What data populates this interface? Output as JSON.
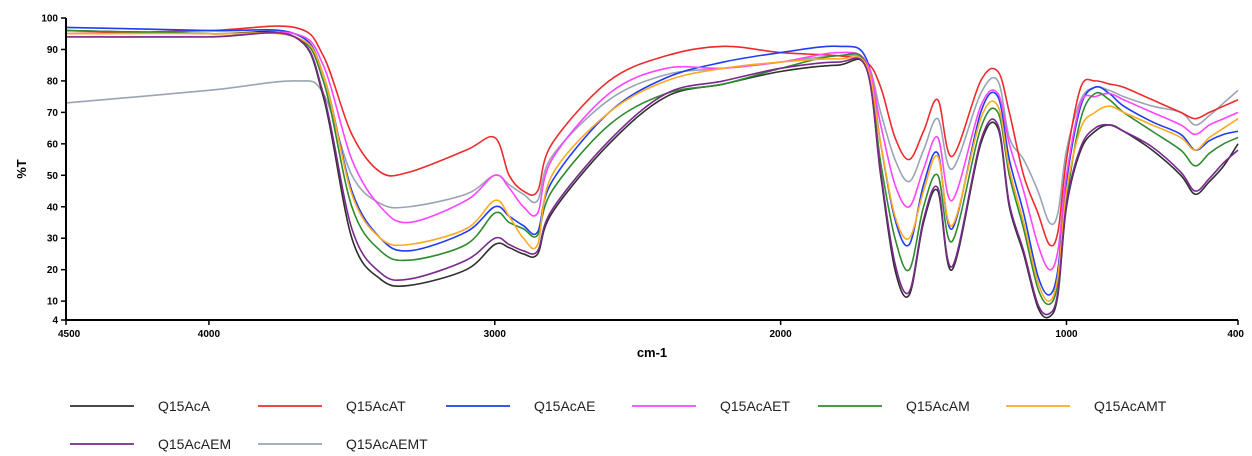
{
  "chart_data": {
    "type": "line",
    "xlabel": "cm-1",
    "ylabel": "%T",
    "xlim": [
      4500,
      400
    ],
    "ylim": [
      4,
      100
    ],
    "x_reversed": true,
    "grid": false,
    "legend_position": "bottom",
    "x_ticks": [
      4500,
      4000,
      3000,
      2000,
      1000,
      400
    ],
    "x_tick_labels": [
      "4500",
      "4000",
      "3000",
      "2000",
      "1000",
      "400"
    ],
    "y_ticks": [
      4,
      10,
      20,
      30,
      40,
      50,
      60,
      70,
      80,
      90,
      100
    ],
    "y_tick_labels": [
      "4",
      "10",
      "20",
      "30",
      "40",
      "50",
      "60",
      "70",
      "80",
      "90",
      "100"
    ],
    "x": [
      4500,
      4000,
      3700,
      3600,
      3500,
      3400,
      3300,
      3100,
      3000,
      2950,
      2900,
      2850,
      2800,
      2600,
      2400,
      2200,
      2000,
      1800,
      1700,
      1650,
      1600,
      1550,
      1500,
      1450,
      1400,
      1300,
      1240,
      1200,
      1150,
      1100,
      1060,
      1030,
      1000,
      950,
      900,
      850,
      800,
      700,
      600,
      550,
      500,
      450,
      400
    ],
    "series": [
      {
        "name": "Q15AcA",
        "color": "#2f2f2f",
        "values": [
          96,
          95,
          94,
          75,
          30,
          17,
          15,
          20,
          28,
          27,
          25,
          25,
          38,
          60,
          75,
          79,
          83,
          85,
          84,
          50,
          20,
          12,
          35,
          45,
          20,
          60,
          65,
          40,
          25,
          8,
          5,
          12,
          40,
          58,
          64,
          66,
          64,
          58,
          50,
          44,
          48,
          53,
          60
        ]
      },
      {
        "name": "Q15AcAT",
        "color": "#ee2b2b",
        "values": [
          95,
          96,
          97,
          88,
          63,
          51,
          51,
          58,
          62,
          50,
          45,
          45,
          60,
          80,
          88,
          91,
          89,
          88,
          86,
          78,
          62,
          55,
          64,
          74,
          56,
          80,
          83,
          70,
          50,
          38,
          28,
          32,
          55,
          78,
          80,
          79,
          78,
          74,
          70,
          68,
          70,
          72,
          74
        ]
      },
      {
        "name": "Q15AcAE",
        "color": "#1f3df2",
        "values": [
          97,
          96,
          95,
          82,
          45,
          30,
          26,
          32,
          40,
          37,
          34,
          32,
          48,
          70,
          81,
          86,
          89,
          91,
          87,
          60,
          36,
          28,
          47,
          57,
          33,
          70,
          75,
          55,
          38,
          18,
          12,
          20,
          48,
          72,
          78,
          76,
          72,
          67,
          63,
          58,
          61,
          63,
          64
        ]
      },
      {
        "name": "Q15AcAET",
        "color": "#ff44ff",
        "values": [
          94,
          94,
          95,
          85,
          55,
          40,
          35,
          42,
          50,
          46,
          40,
          38,
          55,
          76,
          84,
          84,
          86,
          89,
          86,
          66,
          47,
          40,
          52,
          62,
          42,
          72,
          76,
          60,
          45,
          28,
          20,
          26,
          50,
          73,
          75,
          76,
          74,
          70,
          66,
          63,
          66,
          68,
          70
        ]
      },
      {
        "name": "Q15AcAM",
        "color": "#2e8b2e",
        "values": [
          96,
          95,
          94,
          80,
          40,
          26,
          23,
          28,
          38,
          35,
          33,
          31,
          45,
          66,
          76,
          79,
          84,
          88,
          85,
          54,
          30,
          20,
          40,
          50,
          29,
          65,
          70,
          50,
          33,
          14,
          9,
          16,
          42,
          68,
          76,
          74,
          70,
          64,
          58,
          53,
          57,
          60,
          62
        ]
      },
      {
        "name": "Q15AcAMT",
        "color": "#ffaa22",
        "values": [
          95,
          95,
          94,
          82,
          44,
          30,
          28,
          33,
          42,
          37,
          30,
          28,
          50,
          70,
          80,
          84,
          86,
          87,
          85,
          60,
          37,
          30,
          45,
          56,
          34,
          68,
          72,
          52,
          35,
          16,
          10,
          18,
          45,
          65,
          70,
          72,
          70,
          66,
          62,
          58,
          62,
          65,
          68
        ]
      },
      {
        "name": "Q15AcAEM",
        "color": "#7a2a8e",
        "values": [
          94,
          94,
          94,
          76,
          33,
          19,
          17,
          23,
          30,
          28,
          26,
          26,
          39,
          61,
          76,
          80,
          84,
          86,
          84,
          51,
          22,
          13,
          36,
          46,
          21,
          61,
          66,
          41,
          26,
          9,
          6,
          13,
          41,
          59,
          65,
          66,
          64,
          59,
          51,
          45,
          49,
          54,
          58
        ]
      },
      {
        "name": "Q15AcAEMT",
        "color": "#9aa5b4",
        "values": [
          73,
          77,
          80,
          76,
          50,
          41,
          40,
          44,
          50,
          47,
          44,
          42,
          56,
          74,
          82,
          84,
          86,
          88,
          86,
          70,
          55,
          48,
          58,
          68,
          52,
          76,
          80,
          62,
          55,
          45,
          35,
          38,
          58,
          74,
          78,
          77,
          75,
          72,
          70,
          66,
          69,
          73,
          77
        ]
      }
    ]
  }
}
